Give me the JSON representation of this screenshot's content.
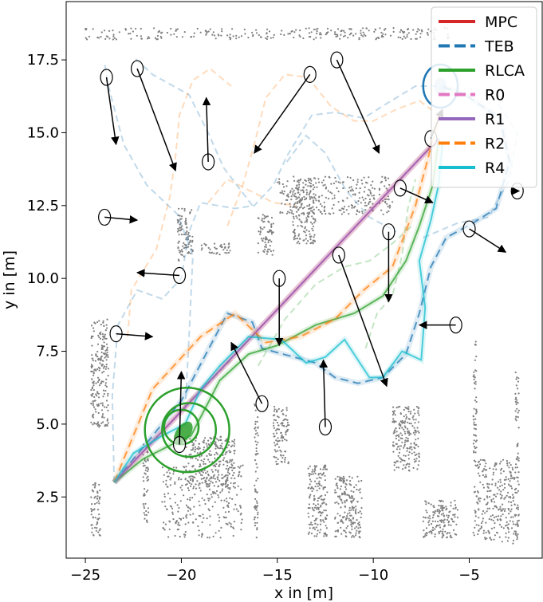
{
  "chart_data": {
    "type": "line",
    "title": "",
    "xlabel": "x in [m]",
    "ylabel": "y in [m]",
    "xlim": [
      -26.0,
      -1.2
    ],
    "ylim": [
      0.4,
      19.5
    ],
    "x_ticks": [
      -25,
      -20,
      -15,
      -10,
      -5
    ],
    "x_tick_labels": [
      "−25",
      "−20",
      "−15",
      "−10",
      "−5"
    ],
    "y_ticks": [
      2.5,
      5.0,
      7.5,
      10.0,
      12.5,
      15.0,
      17.5
    ],
    "y_tick_labels": [
      "2.5",
      "5.0",
      "7.5",
      "10.0",
      "12.5",
      "15.0",
      "17.5"
    ],
    "grid": false,
    "legend_position": "top-right",
    "legend": [
      {
        "name": "MPC",
        "color": "#d62728",
        "style": "solid"
      },
      {
        "name": "TEB",
        "color": "#1f77b4",
        "style": "dashed"
      },
      {
        "name": "RLCA",
        "color": "#2ca02c",
        "style": "solid"
      },
      {
        "name": "R0",
        "color": "#e377c2",
        "style": "dashed"
      },
      {
        "name": "R1",
        "color": "#9467bd",
        "style": "solid"
      },
      {
        "name": "R2",
        "color": "#ff7f0e",
        "style": "dashed"
      },
      {
        "name": "R4",
        "color": "#17becf",
        "style": "solid"
      }
    ],
    "start": [
      -23.5,
      3.0
    ],
    "goal": [
      -6.5,
      16.6
    ],
    "series": [
      {
        "name": "MPC",
        "color": "#d62728",
        "points": [
          [
            -23.5,
            3.0
          ],
          [
            -6.6,
            14.8
          ]
        ]
      },
      {
        "name": "TEB",
        "color": "#1f77b4",
        "points": [
          [
            -23.5,
            3.0
          ],
          [
            -20.0,
            5.8
          ],
          [
            -17.6,
            8.8
          ],
          [
            -16.3,
            8.5
          ],
          [
            -15.8,
            7.6
          ],
          [
            -13.0,
            7.1
          ],
          [
            -12.0,
            6.6
          ],
          [
            -10.8,
            6.4
          ],
          [
            -9.5,
            6.6
          ],
          [
            -8.3,
            7.4
          ],
          [
            -7.6,
            8.8
          ],
          [
            -7.0,
            10.4
          ],
          [
            -6.2,
            11.4
          ],
          [
            -4.8,
            11.9
          ],
          [
            -3.6,
            12.4
          ],
          [
            -2.9,
            14.0
          ],
          [
            -3.4,
            15.5
          ],
          [
            -5.2,
            16.3
          ],
          [
            -6.5,
            16.6
          ]
        ]
      },
      {
        "name": "RLCA",
        "color": "#2ca02c",
        "points": [
          [
            -23.5,
            3.0
          ],
          [
            -22.0,
            3.8
          ],
          [
            -20.5,
            4.3
          ],
          [
            -19.5,
            4.6
          ],
          [
            -18.0,
            6.5
          ],
          [
            -16.5,
            7.4
          ],
          [
            -15.0,
            7.7
          ],
          [
            -13.0,
            8.4
          ],
          [
            -11.0,
            8.8
          ],
          [
            -9.5,
            9.4
          ],
          [
            -8.3,
            10.6
          ],
          [
            -7.6,
            11.8
          ],
          [
            -6.9,
            13.2
          ],
          [
            -6.6,
            14.8
          ]
        ]
      },
      {
        "name": "R0",
        "color": "#e377c2",
        "points": [
          [
            -23.5,
            3.0
          ],
          [
            -6.6,
            14.8
          ]
        ]
      },
      {
        "name": "R1",
        "color": "#9467bd",
        "points": [
          [
            -23.5,
            3.0
          ],
          [
            -6.6,
            14.8
          ]
        ]
      },
      {
        "name": "R2",
        "color": "#ff7f0e",
        "points": [
          [
            -23.5,
            3.0
          ],
          [
            -21.5,
            6.2
          ],
          [
            -19.0,
            8.0
          ],
          [
            -17.2,
            8.8
          ],
          [
            -15.6,
            7.8
          ],
          [
            -13.8,
            8.0
          ],
          [
            -12.0,
            8.6
          ],
          [
            -10.5,
            9.6
          ],
          [
            -9.0,
            10.4
          ],
          [
            -7.8,
            12.5
          ],
          [
            -7.0,
            14.5
          ],
          [
            -6.6,
            15.6
          ]
        ]
      },
      {
        "name": "R4",
        "color": "#17becf",
        "points": [
          [
            -23.5,
            3.0
          ],
          [
            -22.5,
            4.0
          ],
          [
            -21.0,
            4.6
          ],
          [
            -19.8,
            5.0
          ],
          [
            -19.0,
            6.2
          ],
          [
            -18.0,
            7.0
          ],
          [
            -16.5,
            8.0
          ],
          [
            -14.8,
            7.9
          ],
          [
            -13.5,
            7.1
          ],
          [
            -12.5,
            7.3
          ],
          [
            -11.5,
            7.9
          ],
          [
            -10.8,
            7.2
          ],
          [
            -10.2,
            6.6
          ],
          [
            -9.5,
            6.6
          ],
          [
            -8.5,
            7.5
          ],
          [
            -7.5,
            7.2
          ],
          [
            -7.3,
            9.0
          ],
          [
            -7.6,
            10.6
          ],
          [
            -7.0,
            12.0
          ],
          [
            -6.6,
            13.2
          ],
          [
            -6.4,
            14.6
          ]
        ]
      }
    ],
    "faint_tracks": [
      {
        "color": "#1f77b4",
        "points": [
          [
            -23.5,
            3.0
          ],
          [
            -23.6,
            6.0
          ],
          [
            -23.3,
            8.4
          ],
          [
            -22.3,
            9.6
          ],
          [
            -21.0,
            9.3
          ],
          [
            -20.0,
            10.0
          ],
          [
            -19.6,
            11.6
          ],
          [
            -19.0,
            12.6
          ],
          [
            -17.2,
            12.4
          ],
          [
            -16.2,
            12.5
          ],
          [
            -15.2,
            13.2
          ],
          [
            -14.5,
            14.2
          ],
          [
            -13.2,
            15.6
          ],
          [
            -12.0,
            15.7
          ],
          [
            -10.5,
            15.5
          ],
          [
            -9.3,
            16.0
          ],
          [
            -7.8,
            16.6
          ],
          [
            -6.5,
            16.6
          ]
        ]
      },
      {
        "color": "#1f77b4",
        "points": [
          [
            -19.8,
            5.5
          ],
          [
            -19.6,
            8.0
          ],
          [
            -19.4,
            10.8
          ],
          [
            -20.2,
            12.2
          ],
          [
            -21.8,
            13.2
          ],
          [
            -23.0,
            14.6
          ],
          [
            -23.8,
            16.6
          ],
          [
            -24.0,
            17.4
          ]
        ]
      },
      {
        "color": "#1f77b4",
        "points": [
          [
            -16.3,
            12.5
          ],
          [
            -17.8,
            13.8
          ],
          [
            -18.6,
            15.0
          ],
          [
            -19.6,
            16.3
          ],
          [
            -21.5,
            17.0
          ],
          [
            -22.5,
            17.6
          ]
        ]
      },
      {
        "color": "#1f77b4",
        "points": [
          [
            -14.5,
            14.0
          ],
          [
            -13.5,
            14.9
          ],
          [
            -12.5,
            14.3
          ],
          [
            -11.4,
            13.0
          ],
          [
            -10.2,
            12.1
          ],
          [
            -8.8,
            11.6
          ]
        ]
      },
      {
        "color": "#1f77b4",
        "points": [
          [
            -7.4,
            11.4
          ],
          [
            -5.6,
            11.9
          ],
          [
            -4.0,
            12.1
          ],
          [
            -2.9,
            13.4
          ],
          [
            -2.5,
            15.0
          ],
          [
            -3.5,
            16.0
          ]
        ]
      },
      {
        "color": "#ff7f0e",
        "points": [
          [
            -22.8,
            8.0
          ],
          [
            -22.6,
            9.6
          ],
          [
            -21.3,
            11.0
          ],
          [
            -20.6,
            12.8
          ],
          [
            -20.3,
            14.2
          ],
          [
            -20.1,
            15.6
          ],
          [
            -19.4,
            16.8
          ],
          [
            -18.5,
            17.2
          ],
          [
            -17.4,
            16.6
          ]
        ]
      },
      {
        "color": "#ff7f0e",
        "points": [
          [
            -17.6,
            11.8
          ],
          [
            -16.8,
            13.2
          ],
          [
            -16.2,
            14.6
          ],
          [
            -15.6,
            16.2
          ],
          [
            -14.6,
            17.0
          ],
          [
            -13.4,
            16.9
          ],
          [
            -12.2,
            15.9
          ],
          [
            -11.0,
            15.4
          ],
          [
            -10.0,
            15.4
          ],
          [
            -8.8,
            15.8
          ],
          [
            -7.6,
            16.1
          ],
          [
            -6.6,
            15.6
          ]
        ]
      },
      {
        "color": "#ff7f0e",
        "points": [
          [
            -18.6,
            12.6
          ],
          [
            -17.6,
            13.4
          ],
          [
            -16.4,
            13.0
          ],
          [
            -15.2,
            12.6
          ],
          [
            -14.0,
            12.5
          ]
        ]
      },
      {
        "color": "#2ca02c",
        "points": [
          [
            -10.4,
            7.6
          ],
          [
            -9.8,
            8.8
          ],
          [
            -9.0,
            9.4
          ],
          [
            -8.5,
            10.8
          ],
          [
            -8.2,
            12.4
          ],
          [
            -7.8,
            13.4
          ]
        ]
      },
      {
        "color": "#2ca02c",
        "points": [
          [
            -16.0,
            7.0
          ],
          [
            -14.6,
            8.6
          ],
          [
            -13.0,
            9.8
          ],
          [
            -11.5,
            10.4
          ],
          [
            -10.2,
            10.6
          ],
          [
            -9.0,
            11.2
          ],
          [
            -8.0,
            11.8
          ]
        ]
      },
      {
        "color": "#2ca02c",
        "points": [
          [
            -20.6,
            5.0
          ],
          [
            -19.6,
            5.8
          ],
          [
            -18.6,
            6.4
          ],
          [
            -17.4,
            7.2
          ]
        ]
      }
    ],
    "rlca_start_rings": [
      {
        "center": [
          -19.7,
          4.8
        ],
        "radius": 2.2
      },
      {
        "center": [
          -19.6,
          4.8
        ],
        "radius": 1.4
      },
      {
        "center": [
          -20.0,
          4.9
        ],
        "radius": 0.9
      }
    ],
    "goal_ring": {
      "center": [
        -6.5,
        16.6
      ],
      "radius": 0.9,
      "color": "#1f77b4"
    },
    "agents": [
      {
        "from": [
          -23.9,
          16.9
        ],
        "to": [
          -23.4,
          14.6
        ]
      },
      {
        "from": [
          -22.3,
          17.2
        ],
        "to": [
          -20.3,
          13.7
        ]
      },
      {
        "from": [
          -18.6,
          14.0
        ],
        "to": [
          -18.7,
          16.2
        ]
      },
      {
        "from": [
          -13.3,
          17.0
        ],
        "to": [
          -16.2,
          14.3
        ]
      },
      {
        "from": [
          -11.9,
          17.5
        ],
        "to": [
          -9.7,
          14.3
        ]
      },
      {
        "from": [
          -7.0,
          14.8
        ],
        "to": [
          -6.4,
          15.8
        ]
      },
      {
        "from": [
          -24.0,
          12.1
        ],
        "to": [
          -22.3,
          12.0
        ]
      },
      {
        "from": [
          -8.6,
          13.1
        ],
        "to": [
          -6.9,
          12.6
        ]
      },
      {
        "from": [
          -2.5,
          13.0
        ],
        "to": [
          -2.4,
          13.0
        ]
      },
      {
        "from": [
          -5.0,
          11.7
        ],
        "to": [
          -3.1,
          10.9
        ]
      },
      {
        "from": [
          -20.1,
          10.1
        ],
        "to": [
          -22.3,
          10.2
        ]
      },
      {
        "from": [
          -14.9,
          10.0
        ],
        "to": [
          -14.9,
          7.7
        ]
      },
      {
        "from": [
          -11.8,
          10.8
        ],
        "to": [
          -9.3,
          6.3
        ]
      },
      {
        "from": [
          -9.2,
          11.6
        ],
        "to": [
          -9.2,
          9.2
        ]
      },
      {
        "from": [
          -23.4,
          8.1
        ],
        "to": [
          -21.5,
          8.0
        ]
      },
      {
        "from": [
          -5.7,
          8.4
        ],
        "to": [
          -7.6,
          8.4
        ]
      },
      {
        "from": [
          -15.8,
          5.7
        ],
        "to": [
          -17.4,
          7.8
        ]
      },
      {
        "from": [
          -12.5,
          4.9
        ],
        "to": [
          -12.6,
          7.2
        ]
      },
      {
        "from": [
          -20.1,
          4.3
        ],
        "to": [
          -20.0,
          6.8
        ]
      }
    ],
    "static_obstacles": [
      {
        "x": [
          -25.0,
          -6.0
        ],
        "y": [
          18.2,
          18.6
        ]
      },
      {
        "x": [
          -24.7,
          -23.8
        ],
        "y": [
          4.9,
          8.6
        ]
      },
      {
        "x": [
          -24.7,
          -24.2
        ],
        "y": [
          1.1,
          3.0
        ]
      },
      {
        "x": [
          -21.0,
          -16.8
        ],
        "y": [
          1.1,
          3.6
        ]
      },
      {
        "x": [
          -19.8,
          -17.2
        ],
        "y": [
          2.8,
          4.6
        ]
      },
      {
        "x": [
          -20.2,
          -19.4
        ],
        "y": [
          10.6,
          12.4
        ]
      },
      {
        "x": [
          -19.0,
          -17.4
        ],
        "y": [
          10.8,
          11.2
        ]
      },
      {
        "x": [
          -16.0,
          -15.2
        ],
        "y": [
          10.8,
          12.2
        ]
      },
      {
        "x": [
          -15.0,
          -9.0
        ],
        "y": [
          12.2,
          13.5
        ]
      },
      {
        "x": [
          -14.2,
          -13.0
        ],
        "y": [
          11.2,
          13.4
        ]
      },
      {
        "x": [
          -13.4,
          -12.4
        ],
        "y": [
          1.1,
          3.6
        ]
      },
      {
        "x": [
          -12.0,
          -10.6
        ],
        "y": [
          1.1,
          3.2
        ]
      },
      {
        "x": [
          -15.2,
          -14.4
        ],
        "y": [
          3.6,
          5.6
        ]
      },
      {
        "x": [
          -9.0,
          -7.6
        ],
        "y": [
          3.4,
          5.6
        ]
      },
      {
        "x": [
          -7.4,
          -5.6
        ],
        "y": [
          1.1,
          2.4
        ]
      },
      {
        "x": [
          -4.8,
          -2.6
        ],
        "y": [
          0.9,
          3.8
        ]
      },
      {
        "x": [
          -4.8,
          -4.6
        ],
        "y": [
          4.0,
          7.9
        ]
      },
      {
        "x": [
          -2.6,
          -2.4
        ],
        "y": [
          1.0,
          6.8
        ]
      },
      {
        "x": [
          -22.0,
          -21.7
        ],
        "y": [
          1.6,
          4.3
        ]
      },
      {
        "x": [
          -16.2,
          -16.0
        ],
        "y": [
          1.1,
          6.0
        ]
      }
    ]
  }
}
